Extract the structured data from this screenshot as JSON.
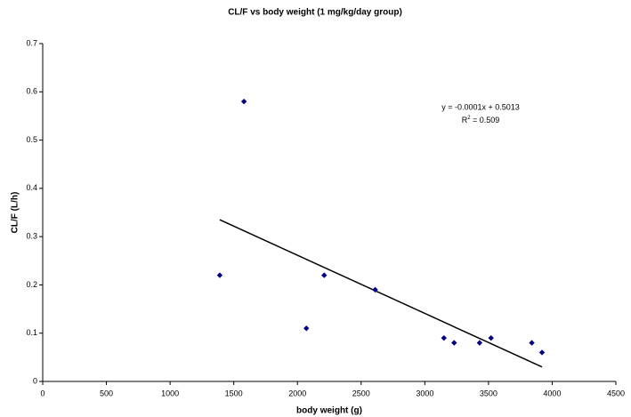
{
  "chart_data": {
    "type": "scatter",
    "title": "CL/F vs body weight (1 mg/kg/day group)",
    "x_label": "body weight (g)",
    "y_label": "CL/F (L/h)",
    "series": [
      {
        "name": "CL/F",
        "color": "#000080",
        "x": [
          1390,
          1580,
          2070,
          2210,
          2610,
          3150,
          3230,
          3430,
          3520,
          3840,
          3920
        ],
        "values": [
          0.22,
          0.58,
          0.11,
          0.22,
          0.19,
          0.09,
          0.08,
          0.08,
          0.09,
          0.08,
          0.06
        ]
      }
    ],
    "trendline": {
      "color": "#000000",
      "x": [
        1390,
        3920
      ],
      "values": [
        0.335,
        0.03
      ]
    },
    "equation": "y = -0.0001x + 0.5013",
    "r_squared": {
      "label": "R",
      "superscript": "2",
      "text": " = 0.509"
    },
    "xlim": [
      0,
      4500
    ],
    "xticks": [
      0,
      500,
      1000,
      1500,
      2000,
      2500,
      3000,
      3500,
      4000,
      4500
    ],
    "ylim": [
      0,
      0.7
    ],
    "yticks": [
      0,
      0.1,
      0.2,
      0.3,
      0.4,
      0.5,
      0.6,
      0.7
    ],
    "grid": false
  }
}
